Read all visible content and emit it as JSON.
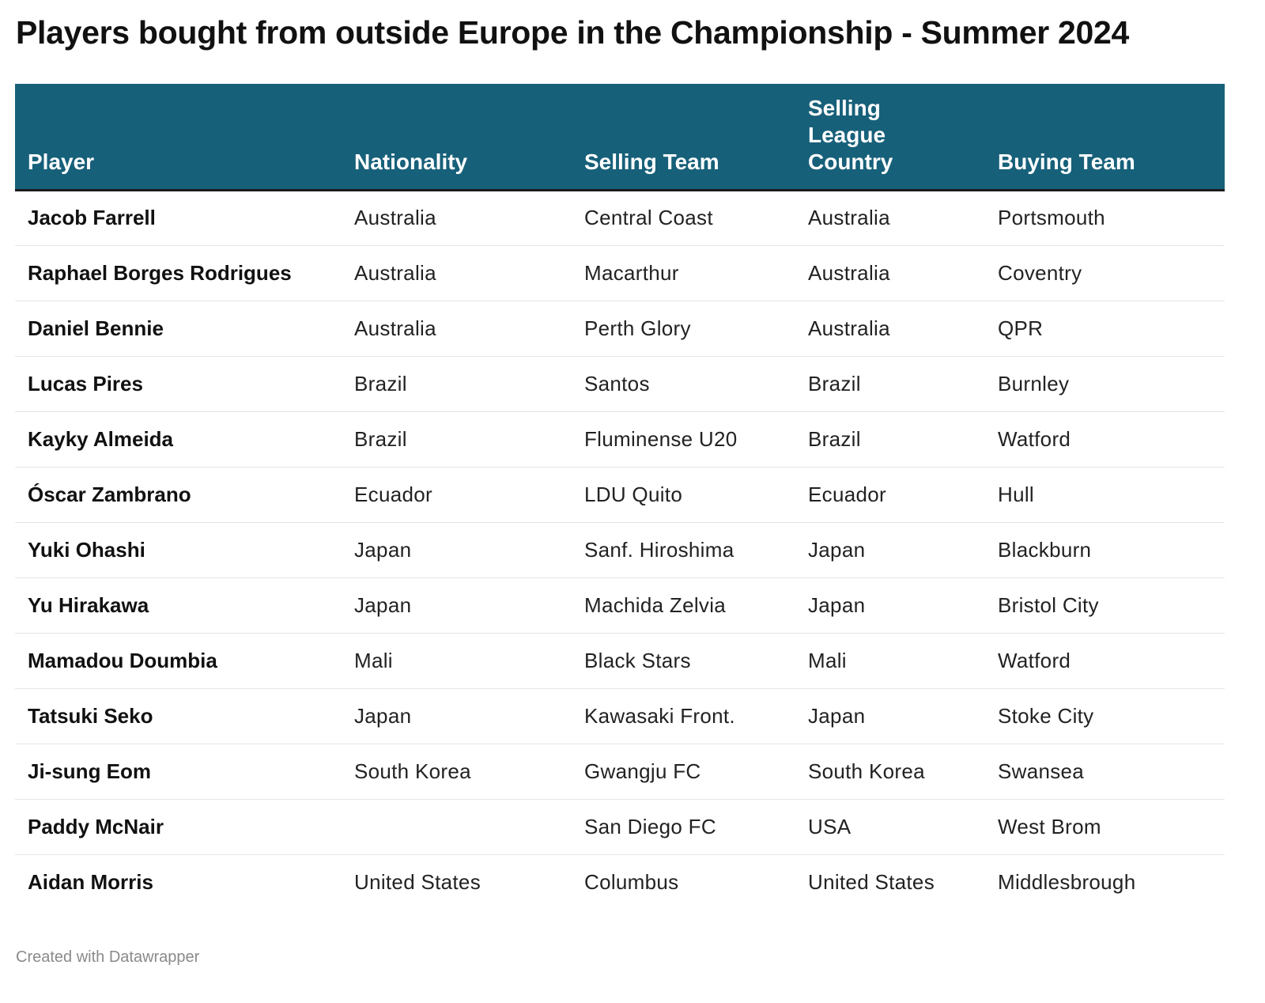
{
  "title": "Players bought from outside Europe in the Championship - Summer 2024",
  "footer": "Created with Datawrapper",
  "colors": {
    "header_background": "#17607a",
    "header_text": "#ffffff",
    "row_divider": "#e6e6e6"
  },
  "chart_data": {
    "type": "table",
    "title": "Players bought from outside Europe in the Championship - Summer 2024",
    "columns": [
      "Player",
      "Nationality",
      "Selling Team",
      "Selling League Country",
      "Buying Team"
    ],
    "rows": [
      [
        "Jacob Farrell",
        "Australia",
        "Central Coast",
        "Australia",
        "Portsmouth"
      ],
      [
        "Raphael Borges Rodrigues",
        "Australia",
        "Macarthur",
        "Australia",
        "Coventry"
      ],
      [
        "Daniel Bennie",
        "Australia",
        "Perth Glory",
        "Australia",
        "QPR"
      ],
      [
        "Lucas Pires",
        "Brazil",
        "Santos",
        "Brazil",
        "Burnley"
      ],
      [
        "Kayky Almeida",
        "Brazil",
        "Fluminense U20",
        "Brazil",
        "Watford"
      ],
      [
        "Óscar Zambrano",
        "Ecuador",
        "LDU Quito",
        "Ecuador",
        "Hull"
      ],
      [
        "Yuki Ohashi",
        "Japan",
        "Sanf. Hiroshima",
        "Japan",
        "Blackburn"
      ],
      [
        "Yu Hirakawa",
        "Japan",
        "Machida Zelvia",
        "Japan",
        "Bristol City"
      ],
      [
        "Mamadou Doumbia",
        "Mali",
        "Black Stars",
        "Mali",
        "Watford"
      ],
      [
        "Tatsuki Seko",
        "Japan",
        "Kawasaki Front.",
        "Japan",
        "Stoke City"
      ],
      [
        "Ji-sung Eom",
        "South Korea",
        "Gwangju FC",
        "South Korea",
        "Swansea"
      ],
      [
        "Paddy McNair",
        "",
        "San Diego FC",
        "USA",
        "West Brom"
      ],
      [
        "Aidan Morris",
        "United States",
        "Columbus",
        "United States",
        "Middlesbrough"
      ]
    ]
  }
}
